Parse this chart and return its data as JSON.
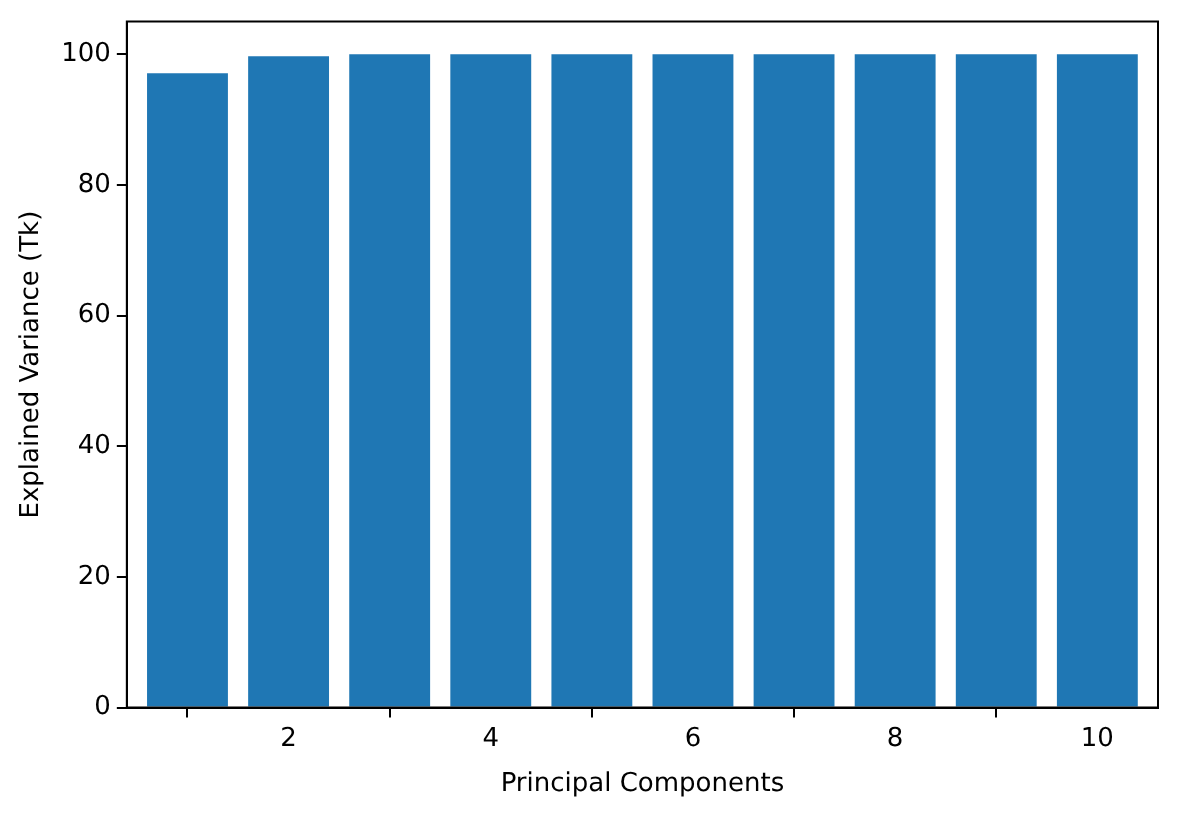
{
  "chart_data": {
    "type": "bar",
    "xlabel": "Principal Components",
    "ylabel": "Explained Variance (Tk)",
    "x": [
      1,
      2,
      3,
      4,
      5,
      6,
      7,
      8,
      9,
      10
    ],
    "values": [
      97.1,
      99.7,
      100,
      100,
      100,
      100,
      100,
      100,
      100,
      100
    ],
    "color": "#1f77b4",
    "xlim": [
      0.4,
      10.6
    ],
    "xticks": [
      2,
      4,
      6,
      8,
      10
    ],
    "ylim": [
      0,
      105
    ],
    "yticks": [
      0,
      20,
      40,
      60,
      80,
      100
    ],
    "grid": false,
    "legend": false
  }
}
